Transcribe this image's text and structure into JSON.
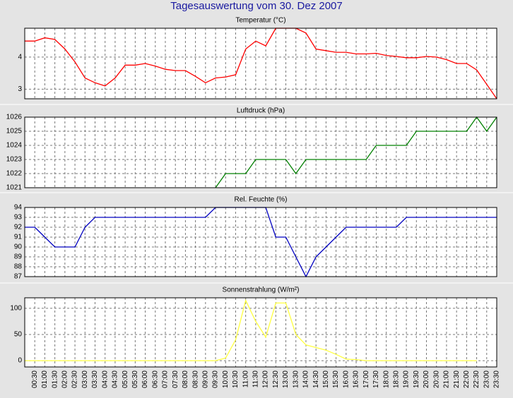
{
  "title": "Tagesauswertung vom 30. Dez 2007",
  "chart_data": [
    {
      "type": "line",
      "title": "Temperatur (°C)",
      "color": "#ff0000",
      "ylim": [
        2.7,
        4.9
      ],
      "yticks": [
        3,
        4
      ],
      "grid": true,
      "values": [
        4.5,
        4.5,
        4.6,
        4.55,
        4.25,
        3.85,
        3.35,
        3.2,
        3.1,
        3.35,
        3.75,
        3.75,
        3.8,
        3.72,
        3.62,
        3.58,
        3.58,
        3.4,
        3.2,
        3.35,
        3.38,
        3.45,
        4.25,
        4.5,
        4.35,
        4.9,
        4.9,
        4.9,
        4.75,
        4.25,
        4.2,
        4.15,
        4.15,
        4.1,
        4.1,
        4.12,
        4.05,
        4.02,
        3.98,
        3.98,
        4.02,
        4.0,
        3.92,
        3.8,
        3.8,
        3.6,
        3.15,
        2.7
      ]
    },
    {
      "type": "line",
      "title": "Luftdruck (hPa)",
      "color": "#008000",
      "ylim": [
        1021,
        1026
      ],
      "yticks": [
        1021,
        1022,
        1023,
        1024,
        1025,
        1026
      ],
      "grid": true,
      "values": [
        null,
        null,
        null,
        null,
        null,
        null,
        null,
        null,
        null,
        null,
        null,
        null,
        null,
        null,
        null,
        null,
        null,
        null,
        null,
        1021,
        1022,
        1022,
        1022,
        1023,
        1023,
        1023,
        1023,
        1022,
        1023,
        1023,
        1023,
        1023,
        1023,
        1023,
        1023,
        1024,
        1024,
        1024,
        1024,
        1025,
        1025,
        1025,
        1025,
        1025,
        1025,
        1026,
        1025,
        1026
      ]
    },
    {
      "type": "line",
      "title": "Rel. Feuchte (%)",
      "color": "#0000c0",
      "ylim": [
        87,
        94
      ],
      "yticks": [
        87,
        88,
        89,
        90,
        91,
        92,
        93,
        94
      ],
      "grid": true,
      "values": [
        92,
        92,
        91,
        90,
        90,
        90,
        92,
        93,
        93,
        93,
        93,
        93,
        93,
        93,
        93,
        93,
        93,
        93,
        93,
        94,
        94,
        94,
        94,
        94,
        94,
        91,
        91,
        89,
        87,
        89,
        90,
        91,
        92,
        92,
        92,
        92,
        92,
        92,
        93,
        93,
        93,
        93,
        93,
        93,
        93,
        93,
        93,
        93
      ]
    },
    {
      "type": "line",
      "title": "Sonnenstrahlung (W/m²)",
      "color": "#ffff40",
      "ylim": [
        -12,
        120
      ],
      "yticks": [
        0,
        50,
        100
      ],
      "grid": true,
      "categories": [
        null,
        "00:30",
        "01:00",
        "01:30",
        "02:00",
        "02:30",
        "03:00",
        "03:30",
        "04:00",
        "04:30",
        "05:00",
        "05:30",
        "06:00",
        "06:30",
        "07:00",
        "07:30",
        "08:00",
        "08:30",
        "09:00",
        "09:30",
        "10:00",
        "10:30",
        "11:00",
        "11:30",
        "12:00",
        "12:30",
        "13:00",
        "13:30",
        "14:00",
        "14:30",
        "15:00",
        "15:30",
        "16:00",
        "16:30",
        "17:00",
        "17:30",
        "18:00",
        "18:30",
        "19:00",
        "19:30",
        "20:00",
        "20:30",
        "21:00",
        "21:30",
        "22:00",
        "22:30",
        "23:00",
        "23:30"
      ],
      "values": [
        0,
        0,
        0,
        0,
        0,
        0,
        0,
        0,
        0,
        0,
        0,
        0,
        0,
        0,
        0,
        0,
        0,
        0,
        0,
        0,
        5,
        40,
        115,
        75,
        45,
        110,
        110,
        50,
        30,
        25,
        20,
        12,
        3,
        2,
        0,
        0,
        0,
        0,
        0,
        0,
        0,
        0,
        0,
        0,
        0,
        0,
        null,
        null
      ]
    }
  ]
}
